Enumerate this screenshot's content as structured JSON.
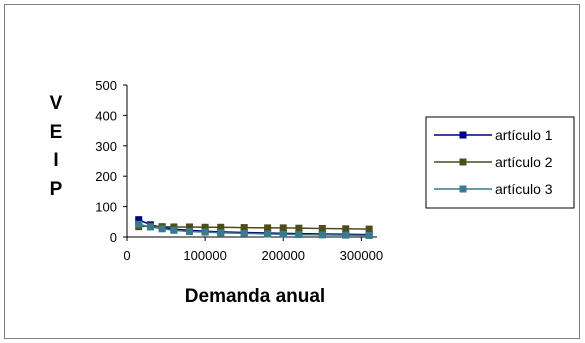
{
  "chart_data": {
    "type": "line",
    "title": "",
    "xlabel": "Demanda anual",
    "ylabel": "VEIP",
    "ylabel_letters": [
      "V",
      "E",
      "I",
      "P"
    ],
    "xlim": [
      0,
      320000
    ],
    "ylim": [
      0,
      500
    ],
    "x_ticks": [
      "0",
      "100000",
      "200000",
      "300000"
    ],
    "y_ticks": [
      "0",
      "100",
      "200",
      "300",
      "400",
      "500"
    ],
    "x_tick_values": [
      0,
      100000,
      200000,
      300000
    ],
    "y_tick_values": [
      0,
      100,
      200,
      300,
      400,
      500
    ],
    "grid": false,
    "legend_position": "right",
    "series": [
      {
        "name": "artículo 1",
        "color": "#000080",
        "x": [
          15000,
          30000,
          45000,
          60000,
          80000,
          100000,
          120000,
          150000,
          180000,
          200000,
          220000,
          250000,
          280000,
          310000
        ],
        "y": [
          57,
          40,
          32,
          26,
          22,
          19,
          17,
          15,
          13,
          12,
          11,
          10,
          9,
          8
        ]
      },
      {
        "name": "artículo 2",
        "color": "#4d4d1a",
        "x": [
          15000,
          30000,
          45000,
          60000,
          80000,
          100000,
          120000,
          150000,
          180000,
          200000,
          220000,
          250000,
          280000,
          310000
        ],
        "y": [
          34,
          36,
          34,
          33,
          33,
          32,
          32,
          31,
          30,
          30,
          29,
          28,
          27,
          26
        ]
      },
      {
        "name": "artículo 3",
        "color": "#3a7a8c",
        "x": [
          15000,
          30000,
          45000,
          60000,
          80000,
          100000,
          120000,
          150000,
          180000,
          200000,
          220000,
          250000,
          280000,
          310000
        ],
        "y": [
          42,
          33,
          27,
          22,
          18,
          16,
          14,
          12,
          10,
          9,
          8,
          7,
          6,
          5
        ]
      }
    ]
  }
}
